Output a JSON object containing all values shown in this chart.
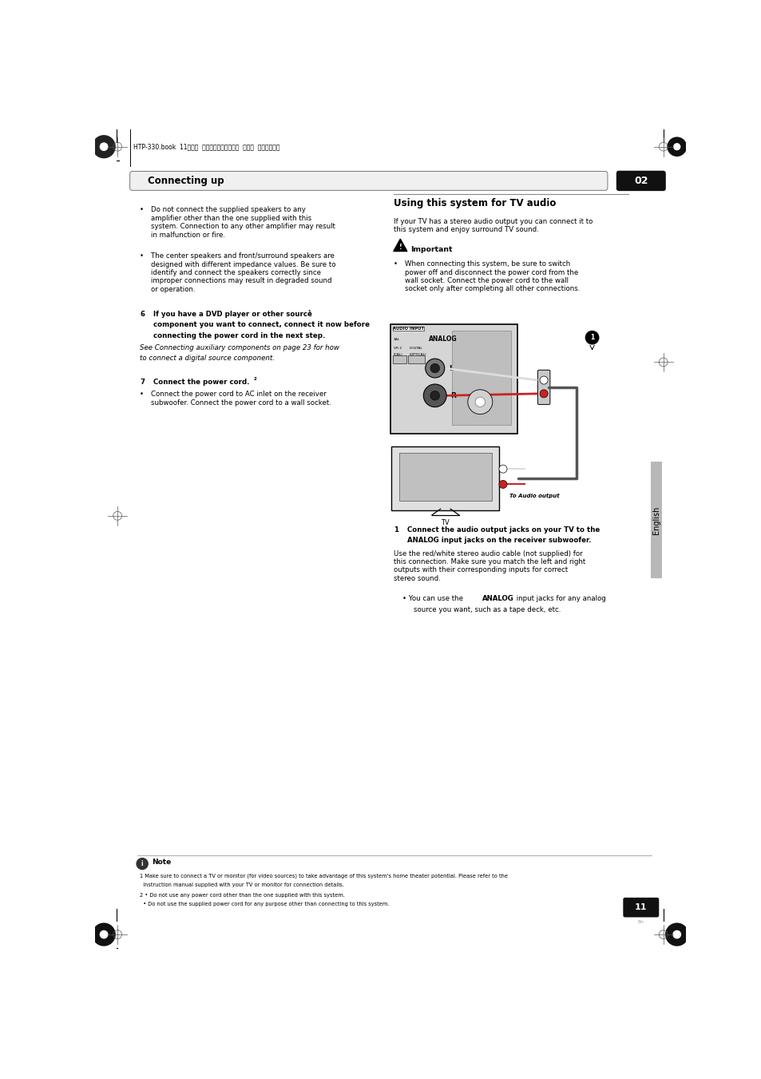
{
  "bg_color": "#ffffff",
  "page_width": 9.54,
  "page_height": 13.51,
  "header_bar_text": "Connecting up",
  "header_bar_num": "02",
  "section_title": "Using this system for TV audio",
  "section_intro": "If your TV has a stereo audio output you can connect it to\nthis system and enjoy surround TV sound.",
  "important_label": "Important",
  "important_bullet": "When connecting this system, be sure to switch\npower off and disconnect the power cord from the\nwall socket. Connect the power cord to the wall\nsocket only after completing all other connections.",
  "bullet1_text": "Do not connect the supplied speakers to any\namplifier other than the one supplied with this\nsystem. Connection to any other amplifier may result\nin malfunction or fire.",
  "bullet2_text": "The center speakers and front/surround speakers are\ndesigned with different impedance values. Be sure to\nidentify and connect the speakers correctly since\nimproper connections may result in degraded sound\nor operation.",
  "step6_line1": "If you have a DVD player or other source",
  "step6_line2": "component you want to connect, connect it now before",
  "step6_line3": "connecting the power cord in the next step.",
  "step6_italic1": "See Connecting auxiliary components on page 23 for how",
  "step6_italic2": "to connect a digital source component.",
  "step7_label": "Connect the power cord.",
  "step7_bullet": "Connect the power cord to AC inlet on the receiver\nsubwoofer. Connect the power cord to a wall socket.",
  "step1_line1": "Connect the audio output jacks on your TV to the",
  "step1_line2": "ANALOG input jacks on the receiver subwoofer.",
  "step1_body": "Use the red/white stereo audio cable (not supplied) for\nthis connection. Make sure you match the left and right\noutputs with their corresponding inputs for correct\nstereo sound.",
  "step1_bullet_pre": "You can use the ",
  "step1_bullet_bold": "ANALOG",
  "step1_bullet_post": " input jacks for any analog",
  "step1_bullet_post2": "source you want, such as a tape deck, etc.",
  "note_label": "Note",
  "note1": "1 Make sure to connect a TV or monitor (for video sources) to take advantage of this system's home theater potential. Please refer to the",
  "note1b": "  instruction manual supplied with your TV or monitor for connection details.",
  "note2": "2 • Do not use any power cord other than the one supplied with this system.",
  "note2b": "  • Do not use the supplied power cord for any purpose other than connecting to this system.",
  "japanese_header": "HTP-330.book  11ページ  ２００７年３月２７日  火曜日  午後６時８分",
  "english_sidebar": "English",
  "page_num": "11"
}
